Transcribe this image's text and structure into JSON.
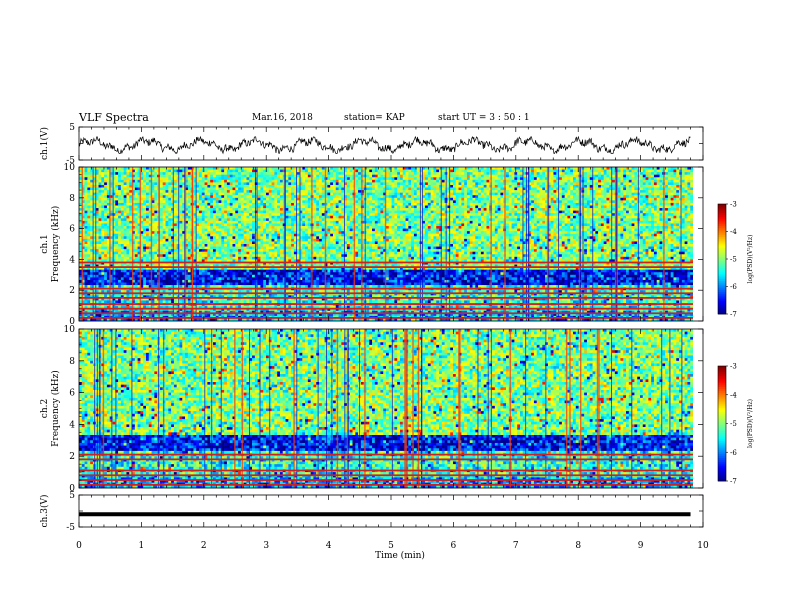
{
  "header": {
    "title": "VLF Spectra",
    "date": "Mar.16, 2018",
    "station": "station= KAP",
    "start_ut": "start  UT =   3  : 50 : 1"
  },
  "colors": {
    "waveform": "#000000",
    "ch3_line": "#000000",
    "tone_line": "#cc2222"
  },
  "chart_data": [
    {
      "type": "line",
      "panel": "ch1-waveform",
      "ylabel": "ch.1(V)",
      "yticklabels": [
        "5",
        "-5"
      ],
      "ylim": [
        -5,
        5
      ],
      "xlim": [
        0,
        10
      ],
      "description_of_series": "oscillating voltage, roughly between -3 and 2 V",
      "series": [
        {
          "amplitude_range": [
            -3,
            2
          ]
        }
      ]
    },
    {
      "type": "heatmap",
      "panel": "ch1-spectrogram",
      "ylabel_top": "ch.1",
      "ylabel": "Frequency (kHz)",
      "yticks": [
        0,
        2,
        4,
        6,
        8,
        10
      ],
      "ylim": [
        0,
        10
      ],
      "xlim": [
        0,
        10
      ],
      "colorbar": {
        "label": "log(PSD)(V²/Hz)",
        "ticks": [
          -3,
          -4,
          -5,
          -6,
          -7
        ],
        "range": [
          -7,
          -3
        ]
      },
      "tone_lines_khz": [
        0.2,
        0.5,
        0.8,
        1.1,
        1.5,
        1.8,
        2.1,
        3.5,
        3.8
      ]
    },
    {
      "type": "heatmap",
      "panel": "ch2-spectrogram",
      "ylabel_top": "ch.2",
      "ylabel": "Frequency (kHz)",
      "yticks": [
        0,
        2,
        4,
        6,
        8,
        10
      ],
      "ylim": [
        0,
        10
      ],
      "xlim": [
        0,
        10
      ],
      "colorbar": {
        "label": "log(PSD)(V²/Hz)",
        "ticks": [
          -3,
          -4,
          -5,
          -6,
          -7
        ],
        "range": [
          -7,
          -3
        ]
      },
      "tone_lines_khz": [
        0.2,
        0.5,
        0.8,
        1.1,
        1.8,
        2.1
      ]
    },
    {
      "type": "line",
      "panel": "ch3-waveform",
      "ylabel": "ch.3(V)",
      "yticklabels": [
        "5",
        "-5"
      ],
      "ylim": [
        -5,
        5
      ],
      "xlim": [
        0,
        10
      ],
      "series": [
        {
          "constant_value": -1
        }
      ]
    }
  ],
  "xaxis": {
    "label": "Time  (min)",
    "ticks": [
      "0",
      "1",
      "2",
      "3",
      "4",
      "5",
      "6",
      "7",
      "8",
      "9",
      "10"
    ]
  }
}
